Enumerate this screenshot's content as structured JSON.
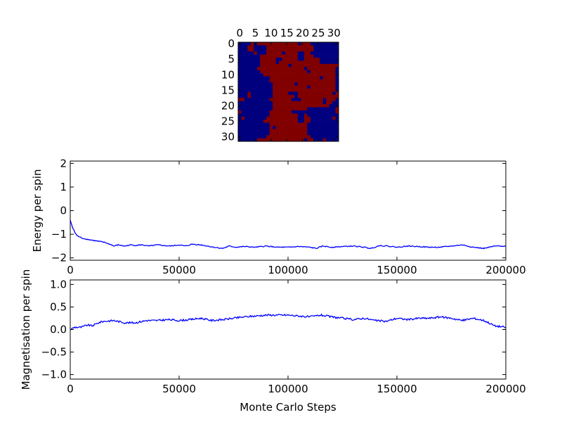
{
  "chart_data": [
    {
      "type": "heatmap",
      "colors": {
        "1": "#800000",
        "0": "#00007f"
      },
      "xticks": [
        0,
        5,
        10,
        15,
        20,
        25,
        30
      ],
      "yticks": [
        0,
        5,
        10,
        15,
        20,
        25,
        30
      ],
      "xlim": [
        -0.5,
        31.5
      ],
      "ylim": [
        31.5,
        -0.5
      ],
      "xaxis_position": "top",
      "grid": false,
      "rows": [
        "00001011111111111110111000000000",
        "00011000011111111111111100000000",
        "00011000011111111111111100000000",
        "00000100011111011110011000000000",
        "00000001111111111110011100000000",
        "00000001111100111110011111000000",
        "00000001111101111111111111000000",
        "00000001111111110111111111111111",
        "00000011111111111111101111111110",
        "00000001111111111111110111111110",
        "00000000111111111111111111111110",
        "00000000001111111111111111011110",
        "00000000001111111111111111111110",
        "00000000000111111101111111111110",
        "00000000000111111111110111111110",
        "00000000000111111111111111111110",
        "00010000000111110001111111111101",
        "00010000000111111101111111111111",
        "11000000001111111000111111101110",
        "00000000000111111111111111101100",
        "00000000000111111111111111111000",
        "00000000000111111111110000000001",
        "10000000001111111000000000000001",
        "00000000001111111110010000000000",
        "01000000011111111110011000000010",
        "00000000111111111110011000000000",
        "00000000001111111111110000000000",
        "00000000001011111111110000000000",
        "00000000001111111111110000000000",
        "00000000001111111111110000000000",
        "00000000011111111111111000000000",
        "00000011111111111111101100010000"
      ]
    },
    {
      "type": "line",
      "xlabel": "",
      "ylabel": "Energy per spin",
      "xlim": [
        0,
        200000
      ],
      "ylim": [
        -2.1,
        2.1
      ],
      "xticks": [
        0,
        50000,
        100000,
        150000,
        200000
      ],
      "yticks": [
        -2,
        -1,
        0,
        1,
        2
      ],
      "grid": false,
      "color": "#0000ff",
      "x": [
        0,
        1000,
        2000,
        3000,
        5000,
        7000,
        10000,
        13000,
        16000,
        19000,
        20000,
        22000,
        25000,
        28000,
        30000,
        33000,
        36000,
        40000,
        43000,
        46000,
        50000,
        53000,
        56000,
        60000,
        63000,
        66000,
        70000,
        73000,
        76000,
        80000,
        85000,
        90000,
        95000,
        100000,
        105000,
        110000,
        113000,
        116000,
        120000,
        125000,
        130000,
        135000,
        138000,
        142000,
        146000,
        150000,
        155000,
        160000,
        165000,
        170000,
        175000,
        180000,
        185000,
        190000,
        195000,
        200000
      ],
      "y": [
        -0.4,
        -0.7,
        -0.9,
        -1.05,
        -1.15,
        -1.2,
        -1.25,
        -1.3,
        -1.35,
        -1.45,
        -1.5,
        -1.45,
        -1.5,
        -1.45,
        -1.47,
        -1.45,
        -1.5,
        -1.45,
        -1.48,
        -1.5,
        -1.45,
        -1.5,
        -1.42,
        -1.45,
        -1.5,
        -1.55,
        -1.6,
        -1.5,
        -1.55,
        -1.52,
        -1.55,
        -1.5,
        -1.55,
        -1.55,
        -1.52,
        -1.55,
        -1.6,
        -1.5,
        -1.55,
        -1.52,
        -1.5,
        -1.55,
        -1.6,
        -1.48,
        -1.5,
        -1.55,
        -1.5,
        -1.52,
        -1.55,
        -1.55,
        -1.5,
        -1.45,
        -1.55,
        -1.6,
        -1.5,
        -1.5
      ]
    },
    {
      "type": "line",
      "xlabel": "Monte Carlo Steps",
      "ylabel": "Magnetisation per spin",
      "xlim": [
        0,
        200000
      ],
      "ylim": [
        -1.1,
        1.1
      ],
      "xticks": [
        0,
        50000,
        100000,
        150000,
        200000
      ],
      "yticks": [
        -1.0,
        -0.5,
        0.0,
        0.5,
        1.0
      ],
      "ytick_labels": [
        "−1.0",
        "−0.5",
        "0.0",
        "0.5",
        "1.0"
      ],
      "grid": false,
      "color": "#0000ff",
      "x": [
        0,
        2000,
        5000,
        8000,
        10000,
        13000,
        15000,
        20000,
        25000,
        30000,
        35000,
        40000,
        45000,
        50000,
        55000,
        60000,
        65000,
        70000,
        75000,
        80000,
        85000,
        90000,
        95000,
        100000,
        105000,
        110000,
        115000,
        120000,
        125000,
        130000,
        135000,
        140000,
        145000,
        150000,
        155000,
        160000,
        165000,
        170000,
        175000,
        180000,
        185000,
        190000,
        195000,
        200000
      ],
      "y": [
        0.0,
        0.05,
        0.05,
        0.1,
        0.08,
        0.15,
        0.18,
        0.2,
        0.15,
        0.15,
        0.2,
        0.2,
        0.22,
        0.2,
        0.22,
        0.25,
        0.2,
        0.22,
        0.25,
        0.28,
        0.3,
        0.32,
        0.32,
        0.32,
        0.3,
        0.28,
        0.32,
        0.28,
        0.25,
        0.22,
        0.25,
        0.2,
        0.18,
        0.25,
        0.22,
        0.25,
        0.25,
        0.28,
        0.25,
        0.2,
        0.25,
        0.2,
        0.08,
        0.05
      ]
    }
  ]
}
